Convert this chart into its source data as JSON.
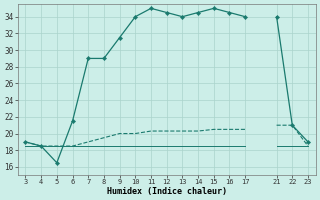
{
  "xlabel": "Humidex (Indice chaleur)",
  "bg_color": "#cceee8",
  "grid_color": "#aad4cc",
  "line_color": "#1a7a6e",
  "xtick_labels": [
    "3",
    "4",
    "5",
    "6",
    "7",
    "8",
    "9",
    "10",
    "11",
    "12",
    "13",
    "14",
    "15",
    "16",
    "17",
    "",
    "21",
    "22",
    "23"
  ],
  "yticks": [
    16,
    18,
    20,
    22,
    24,
    26,
    28,
    30,
    32,
    34
  ],
  "ylim": [
    15.0,
    35.5
  ],
  "line1_y": [
    19.0,
    18.5,
    16.5,
    21.5,
    29.0,
    29.0,
    31.5,
    34.0,
    35.0,
    34.5,
    34.0,
    34.5,
    35.0,
    34.5,
    34.0,
    null,
    34.0,
    21.0,
    19.0
  ],
  "line2_y": [
    19.0,
    18.5,
    18.5,
    18.5,
    19.0,
    19.5,
    20.0,
    20.0,
    20.3,
    20.3,
    20.3,
    20.3,
    20.5,
    20.5,
    20.5,
    null,
    21.0,
    21.0,
    18.5
  ],
  "line3_y": [
    18.5,
    18.5,
    18.5,
    18.5,
    18.5,
    18.5,
    18.5,
    18.5,
    18.5,
    18.5,
    18.5,
    18.5,
    18.5,
    18.5,
    18.5,
    null,
    18.5,
    18.5,
    18.5
  ]
}
